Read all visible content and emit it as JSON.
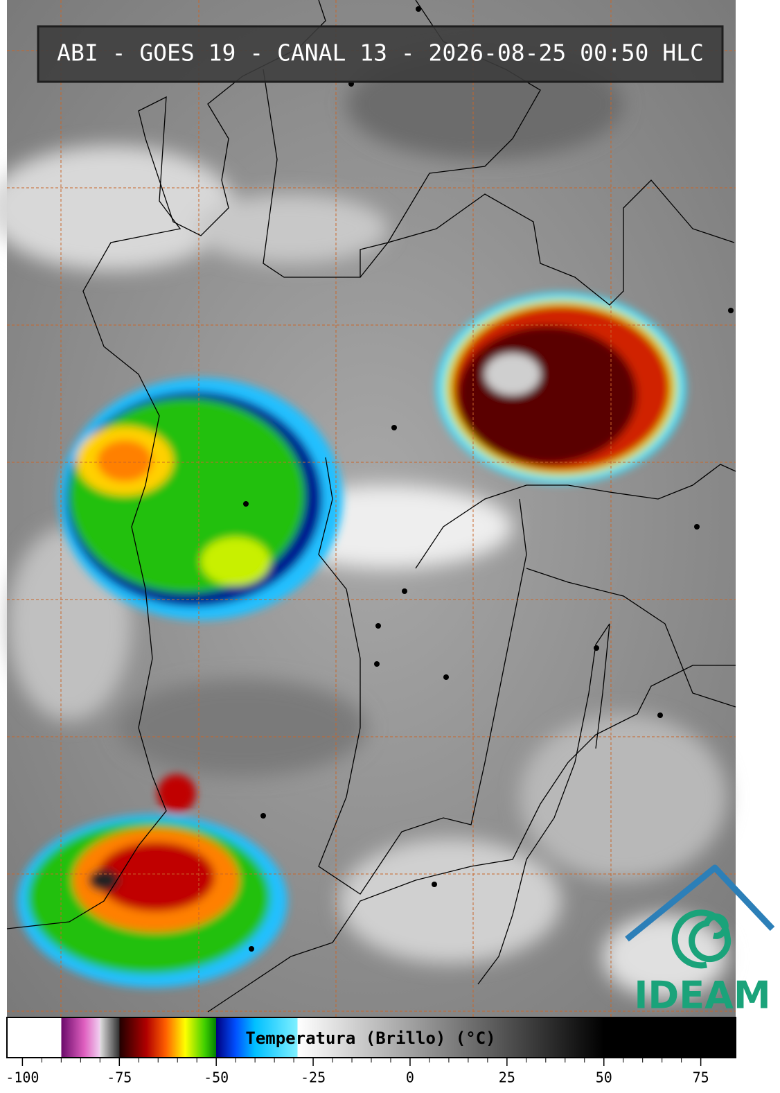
{
  "chart_data": {
    "type": "colorbar-map",
    "title": "ABI - GOES 19 - CANAL 13 - 2026-08-25 00:50 HLC",
    "colorbar_label": "Temperatura (Brillo) (°C)",
    "xlim": [
      -104,
      84
    ],
    "xticks": [
      -100,
      -75,
      -50,
      -25,
      0,
      25,
      50,
      75
    ],
    "colormap": [
      [
        -104,
        "#ffffff"
      ],
      [
        -90,
        "#ffffff"
      ],
      [
        -90,
        "#6a0a6a"
      ],
      [
        -84,
        "#e060c0"
      ],
      [
        -80,
        "#f0d0f0"
      ],
      [
        -80,
        "#e0e0e0"
      ],
      [
        -75,
        "#303030"
      ],
      [
        -75,
        "#200000"
      ],
      [
        -68,
        "#b00000"
      ],
      [
        -63,
        "#ff6000"
      ],
      [
        -58,
        "#ffff00"
      ],
      [
        -53,
        "#40d000"
      ],
      [
        -50,
        "#008000"
      ],
      [
        -50,
        "#000080"
      ],
      [
        -45,
        "#0050ff"
      ],
      [
        -40,
        "#00c0ff"
      ],
      [
        -29,
        "#80f0ff"
      ],
      [
        -29,
        "#ffffff"
      ],
      [
        50,
        "#000000"
      ],
      [
        84,
        "#000000"
      ]
    ],
    "logo": "IDEAM"
  }
}
